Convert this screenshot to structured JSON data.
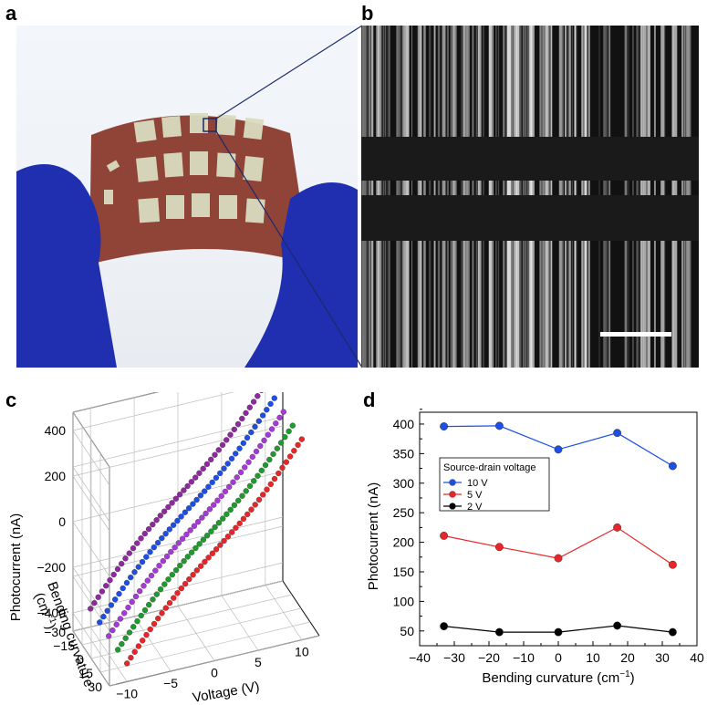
{
  "panels": {
    "a": "a",
    "b": "b",
    "c": "c",
    "d": "d"
  },
  "colors": {
    "glove": "#1f2fb0",
    "substrate": "#8a3a2c",
    "electrode": "#d9dcc0",
    "red": "#e8262a",
    "green": "#1e9a2e",
    "purple": "#a63ad6",
    "blue": "#1d4ee6",
    "magenta": "#8e2a9e",
    "black": "#000000"
  },
  "chart_data": [
    {
      "type": "line",
      "panel": "c",
      "zlabel": "Photocurrent (nA)",
      "ylabel_line1": "Bending curvature",
      "ylabel_line2": "(cm",
      "ylabel_sup": "−1",
      "ylabel_close": ")",
      "xlabel": "Voltage (V)",
      "x_ticks": [
        "−10",
        "−5",
        "0",
        "5",
        "10"
      ],
      "y_ticks": [
        "−30",
        "−15",
        "0",
        "15",
        "30"
      ],
      "z_ticks": [
        "400",
        "200",
        "0",
        "−200",
        "−400"
      ],
      "xlim": [
        -12,
        12
      ],
      "ylim": [
        -30,
        30
      ],
      "zlim": [
        -480,
        480
      ],
      "x": [
        -10,
        10
      ],
      "series": [
        {
          "curvature": -30,
          "color": "#8e2a9e",
          "z": [
            -400,
            400
          ]
        },
        {
          "curvature": -15,
          "color": "#1d4ee6",
          "z": [
            -400,
            400
          ]
        },
        {
          "curvature": 0,
          "color": "#a63ad6",
          "z": [
            -400,
            400
          ]
        },
        {
          "curvature": 15,
          "color": "#1e9a2e",
          "z": [
            -400,
            400
          ]
        },
        {
          "curvature": 30,
          "color": "#e8262a",
          "z": [
            -400,
            400
          ]
        }
      ]
    },
    {
      "type": "line",
      "panel": "d",
      "xlabel": "Bending curvature (cm",
      "xlabel_sup": "−1",
      "xlabel_close": ")",
      "ylabel": "Photocurrent (nA)",
      "xlim": [
        -40,
        40
      ],
      "ylim": [
        25,
        420
      ],
      "x_ticks": [
        -40,
        -30,
        -20,
        -10,
        0,
        10,
        20,
        30,
        40
      ],
      "y_ticks": [
        50,
        100,
        150,
        200,
        250,
        300,
        350,
        400
      ],
      "x_tick_labels": [
        "−40",
        "−30",
        "−20",
        "−10",
        "0",
        "10",
        "20",
        "30",
        "40"
      ],
      "legend_title": "Source-drain voltage",
      "legend_position": "middle-left",
      "x": [
        -33,
        -17,
        0,
        17,
        33
      ],
      "series": [
        {
          "name": "10 V",
          "color": "#1d4ee6",
          "values": [
            396,
            397,
            357,
            385,
            329
          ]
        },
        {
          "name": "5 V",
          "color": "#e8262a",
          "values": [
            211,
            192,
            173,
            225,
            162
          ]
        },
        {
          "name": "2 V",
          "color": "#000000",
          "values": [
            58,
            48,
            48,
            59,
            48
          ]
        }
      ]
    }
  ]
}
